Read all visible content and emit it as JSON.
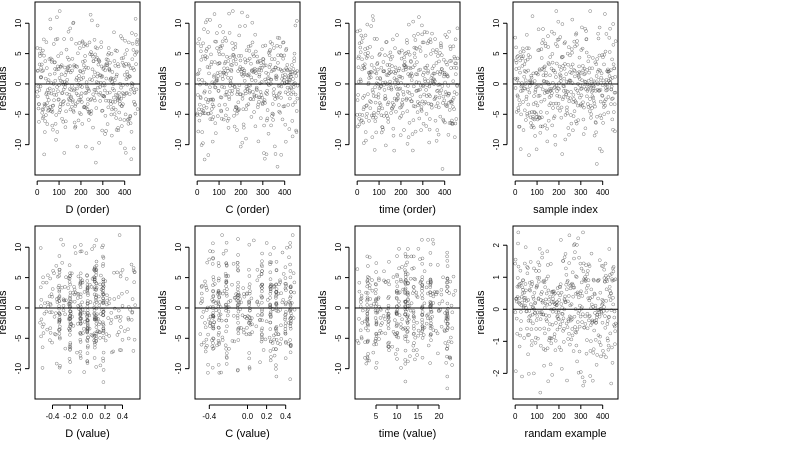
{
  "figure": {
    "background": "#ffffff",
    "point_color": "#4d4d4d",
    "axis_color": "#000000"
  },
  "chart_data": [
    {
      "type": "scatter",
      "xlabel": "D (order)",
      "ylabel": "residuals",
      "xlim": [
        -10,
        470
      ],
      "ylim": [
        -15,
        13.5
      ],
      "xticks": [
        0,
        100,
        200,
        300,
        400
      ],
      "xtick_labels": [
        "0",
        "100",
        "200",
        "300",
        "400"
      ],
      "yticks": [
        -10,
        -5,
        0,
        5,
        10
      ],
      "ytick_labels": [
        "-10",
        "-5",
        "0",
        "5",
        "10"
      ],
      "hline": 0,
      "n_points": 460,
      "seed": 11,
      "x_kind": "index",
      "y_sd": 4.6,
      "y_clip": [
        -14,
        12
      ],
      "clusters": []
    },
    {
      "type": "scatter",
      "xlabel": "C (order)",
      "ylabel": "residuals",
      "xlim": [
        -10,
        470
      ],
      "ylim": [
        -15,
        13.5
      ],
      "xticks": [
        0,
        100,
        200,
        300,
        400
      ],
      "xtick_labels": [
        "0",
        "100",
        "200",
        "300",
        "400"
      ],
      "yticks": [
        -10,
        -5,
        0,
        5,
        10
      ],
      "ytick_labels": [
        "-10",
        "-5",
        "0",
        "5",
        "10"
      ],
      "hline": 0,
      "n_points": 460,
      "seed": 23,
      "x_kind": "index",
      "y_sd": 4.6,
      "y_clip": [
        -14,
        12
      ],
      "clusters": []
    },
    {
      "type": "scatter",
      "xlabel": "time (order)",
      "ylabel": "residuals",
      "xlim": [
        -10,
        470
      ],
      "ylim": [
        -15,
        13.5
      ],
      "xticks": [
        0,
        100,
        200,
        300,
        400
      ],
      "xtick_labels": [
        "0",
        "100",
        "200",
        "300",
        "400"
      ],
      "yticks": [
        -10,
        -5,
        0,
        5,
        10
      ],
      "ytick_labels": [
        "-10",
        "-5",
        "0",
        "5",
        "10"
      ],
      "hline": 0,
      "n_points": 460,
      "seed": 37,
      "x_kind": "index",
      "y_sd": 4.6,
      "y_clip": [
        -14,
        12
      ],
      "clusters": []
    },
    {
      "type": "scatter",
      "xlabel": "sample index",
      "ylabel": "residuals",
      "xlim": [
        -10,
        470
      ],
      "ylim": [
        -15,
        13.5
      ],
      "xticks": [
        0,
        100,
        200,
        300,
        400
      ],
      "xtick_labels": [
        "0",
        "100",
        "200",
        "300",
        "400"
      ],
      "yticks": [
        -10,
        -5,
        0,
        5,
        10
      ],
      "ytick_labels": [
        "-10",
        "-5",
        "0",
        "5",
        "10"
      ],
      "hline": 0,
      "n_points": 460,
      "seed": 41,
      "x_kind": "index",
      "y_sd": 4.6,
      "y_clip": [
        -14,
        12
      ],
      "clusters": []
    },
    {
      "type": "scatter",
      "xlabel": "D (value)",
      "ylabel": "residuals",
      "xlim": [
        -0.6,
        0.6
      ],
      "ylim": [
        -15,
        13.5
      ],
      "xticks": [
        -0.4,
        -0.2,
        0.0,
        0.2,
        0.4
      ],
      "xtick_labels": [
        "-0.4",
        "-0.2",
        "0.0",
        "0.2",
        "0.4"
      ],
      "yticks": [
        -10,
        -5,
        0,
        5,
        10
      ],
      "ytick_labels": [
        "-10",
        "-5",
        "0",
        "5",
        "10"
      ],
      "hline": 0,
      "n_points": 460,
      "seed": 53,
      "x_kind": "value",
      "x_range": [
        -0.55,
        0.55
      ],
      "y_sd": 4.6,
      "y_clip": [
        -14,
        12
      ],
      "clusters": [
        -0.08,
        0.0,
        0.08,
        0.1,
        0.18,
        -0.2,
        -0.32
      ]
    },
    {
      "type": "scatter",
      "xlabel": "C (value)",
      "ylabel": "residuals",
      "xlim": [
        -0.55,
        0.55
      ],
      "ylim": [
        -15,
        13.5
      ],
      "xticks": [
        -0.4,
        0.0,
        0.2,
        0.4
      ],
      "xtick_labels": [
        "-0.4",
        "0.0",
        "0.2",
        "0.4"
      ],
      "yticks": [
        -10,
        -5,
        0,
        5,
        10
      ],
      "ytick_labels": [
        "-10",
        "-5",
        "0",
        "5",
        "10"
      ],
      "hline": 0,
      "n_points": 460,
      "seed": 67,
      "x_kind": "value",
      "x_range": [
        -0.5,
        0.5
      ],
      "y_sd": 4.6,
      "y_clip": [
        -14,
        12
      ],
      "clusters": [
        -0.36,
        -0.3,
        -0.22,
        -0.1,
        0.02,
        0.15,
        0.24,
        0.3,
        0.4,
        0.45
      ]
    },
    {
      "type": "scatter",
      "xlabel": "time (value)",
      "ylabel": "residuals",
      "xlim": [
        0,
        25
      ],
      "ylim": [
        -15,
        13.5
      ],
      "xticks": [
        5,
        10,
        15,
        20
      ],
      "xtick_labels": [
        "5",
        "10",
        "15",
        "20"
      ],
      "yticks": [
        -10,
        -5,
        0,
        5,
        10
      ],
      "ytick_labels": [
        "-10",
        "-5",
        "0",
        "5",
        "10"
      ],
      "hline": 0,
      "n_points": 460,
      "seed": 79,
      "x_kind": "value",
      "x_range": [
        0.5,
        24
      ],
      "y_sd": 4.6,
      "y_clip": [
        -14,
        12
      ],
      "clusters": [
        3,
        5,
        8,
        10,
        12,
        12.5,
        14,
        16,
        18,
        22
      ]
    },
    {
      "type": "scatter",
      "xlabel": "randam example",
      "ylabel": "residuals",
      "xlim": [
        -10,
        470
      ],
      "ylim": [
        -2.8,
        2.6
      ],
      "xticks": [
        0,
        100,
        200,
        300,
        400
      ],
      "xtick_labels": [
        "0",
        "100",
        "200",
        "300",
        "400"
      ],
      "yticks": [
        -2,
        -1,
        0,
        1,
        2
      ],
      "ytick_labels": [
        "-2",
        "-1",
        "0",
        "1",
        "2"
      ],
      "hline": 0,
      "n_points": 460,
      "seed": 97,
      "x_kind": "index",
      "y_sd": 1.0,
      "y_clip": [
        -2.6,
        2.4
      ],
      "clusters": []
    }
  ]
}
